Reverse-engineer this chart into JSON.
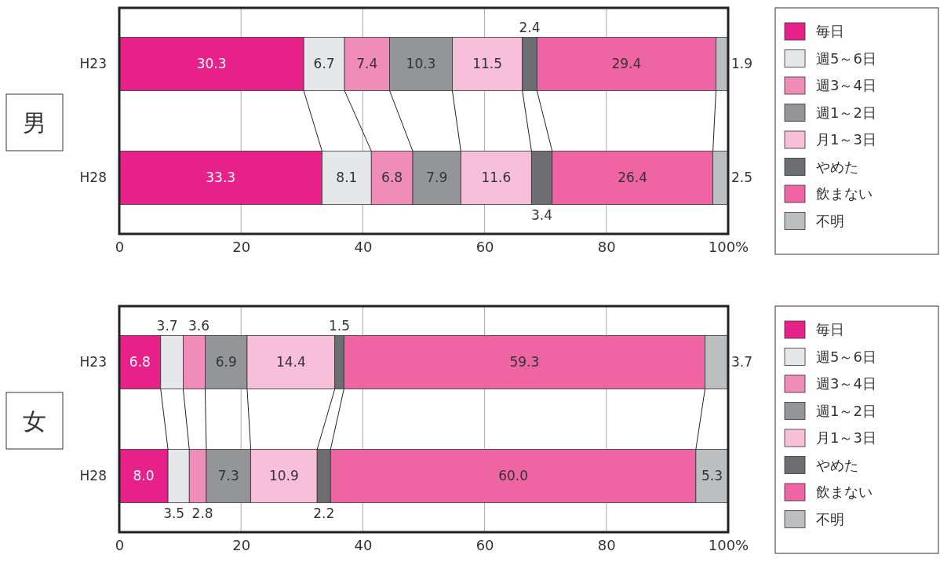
{
  "chart_data": [
    {
      "type": "bar",
      "title": "男",
      "orientation": "horizontal",
      "stacked": true,
      "categories": [
        "H23",
        "H28"
      ],
      "xlim": [
        0,
        100
      ],
      "xticks": [
        0,
        20,
        40,
        60,
        80,
        {
          "value": 100,
          "label": "100%"
        }
      ],
      "grid": "x",
      "legend": "right",
      "data_labels": true,
      "series": [
        {
          "name": "毎日",
          "color": "#e8208a",
          "values": [
            30.3,
            33.3
          ]
        },
        {
          "name": "週5～6日",
          "color": "#e6e7e8",
          "values": [
            6.7,
            8.1
          ]
        },
        {
          "name": "週3～4日",
          "color": "#f08cb8",
          "values": [
            7.4,
            6.8
          ]
        },
        {
          "name": "週1～2日",
          "color": "#939598",
          "values": [
            10.3,
            7.9
          ]
        },
        {
          "name": "月1～3日",
          "color": "#f7bfd8",
          "values": [
            11.5,
            11.6
          ]
        },
        {
          "name": "やめた",
          "color": "#6d6e71",
          "values": [
            2.4,
            3.4
          ]
        },
        {
          "name": "飲まない",
          "color": "#ef65a3",
          "values": [
            29.4,
            26.4
          ]
        },
        {
          "name": "不明",
          "color": "#bcbec0",
          "values": [
            1.9,
            2.5
          ]
        }
      ]
    },
    {
      "type": "bar",
      "title": "女",
      "orientation": "horizontal",
      "stacked": true,
      "categories": [
        "H23",
        "H28"
      ],
      "xlim": [
        0,
        100
      ],
      "xticks": [
        0,
        20,
        40,
        60,
        80,
        {
          "value": 100,
          "label": "100%"
        }
      ],
      "grid": "x",
      "legend": "right",
      "series": [
        {
          "name": "毎日",
          "color": "#e8208a",
          "values": [
            6.8,
            8.0
          ],
          "value_labels": [
            "6.8",
            "8.0"
          ]
        },
        {
          "name": "週5～6日",
          "color": "#e6e7e8",
          "values": [
            3.7,
            3.5
          ],
          "value_labels": [
            "3.7",
            "3.5"
          ]
        },
        {
          "name": "週3～4日",
          "color": "#f08cb8",
          "values": [
            3.6,
            2.8
          ],
          "value_labels": [
            "3.6",
            "2.8"
          ]
        },
        {
          "name": "週1～2日",
          "color": "#939598",
          "values": [
            6.9,
            7.3
          ],
          "value_labels": [
            "6.9",
            "7.3"
          ]
        },
        {
          "name": "月1～3日",
          "color": "#f7bfd8",
          "values": [
            14.4,
            10.9
          ],
          "value_labels": [
            "14.4",
            "10.9"
          ]
        },
        {
          "name": "やめた",
          "color": "#6d6e71",
          "values": [
            1.5,
            2.2
          ],
          "value_labels": [
            "1.5",
            "2.2"
          ]
        },
        {
          "name": "飲まない",
          "color": "#ef65a3",
          "values": [
            59.3,
            60.0
          ],
          "value_labels": [
            "59.3",
            "60.0"
          ]
        },
        {
          "name": "不明",
          "color": "#bcbec0",
          "values": [
            3.7,
            5.3
          ],
          "value_labels": [
            "3.7",
            "5.3"
          ]
        }
      ]
    }
  ]
}
